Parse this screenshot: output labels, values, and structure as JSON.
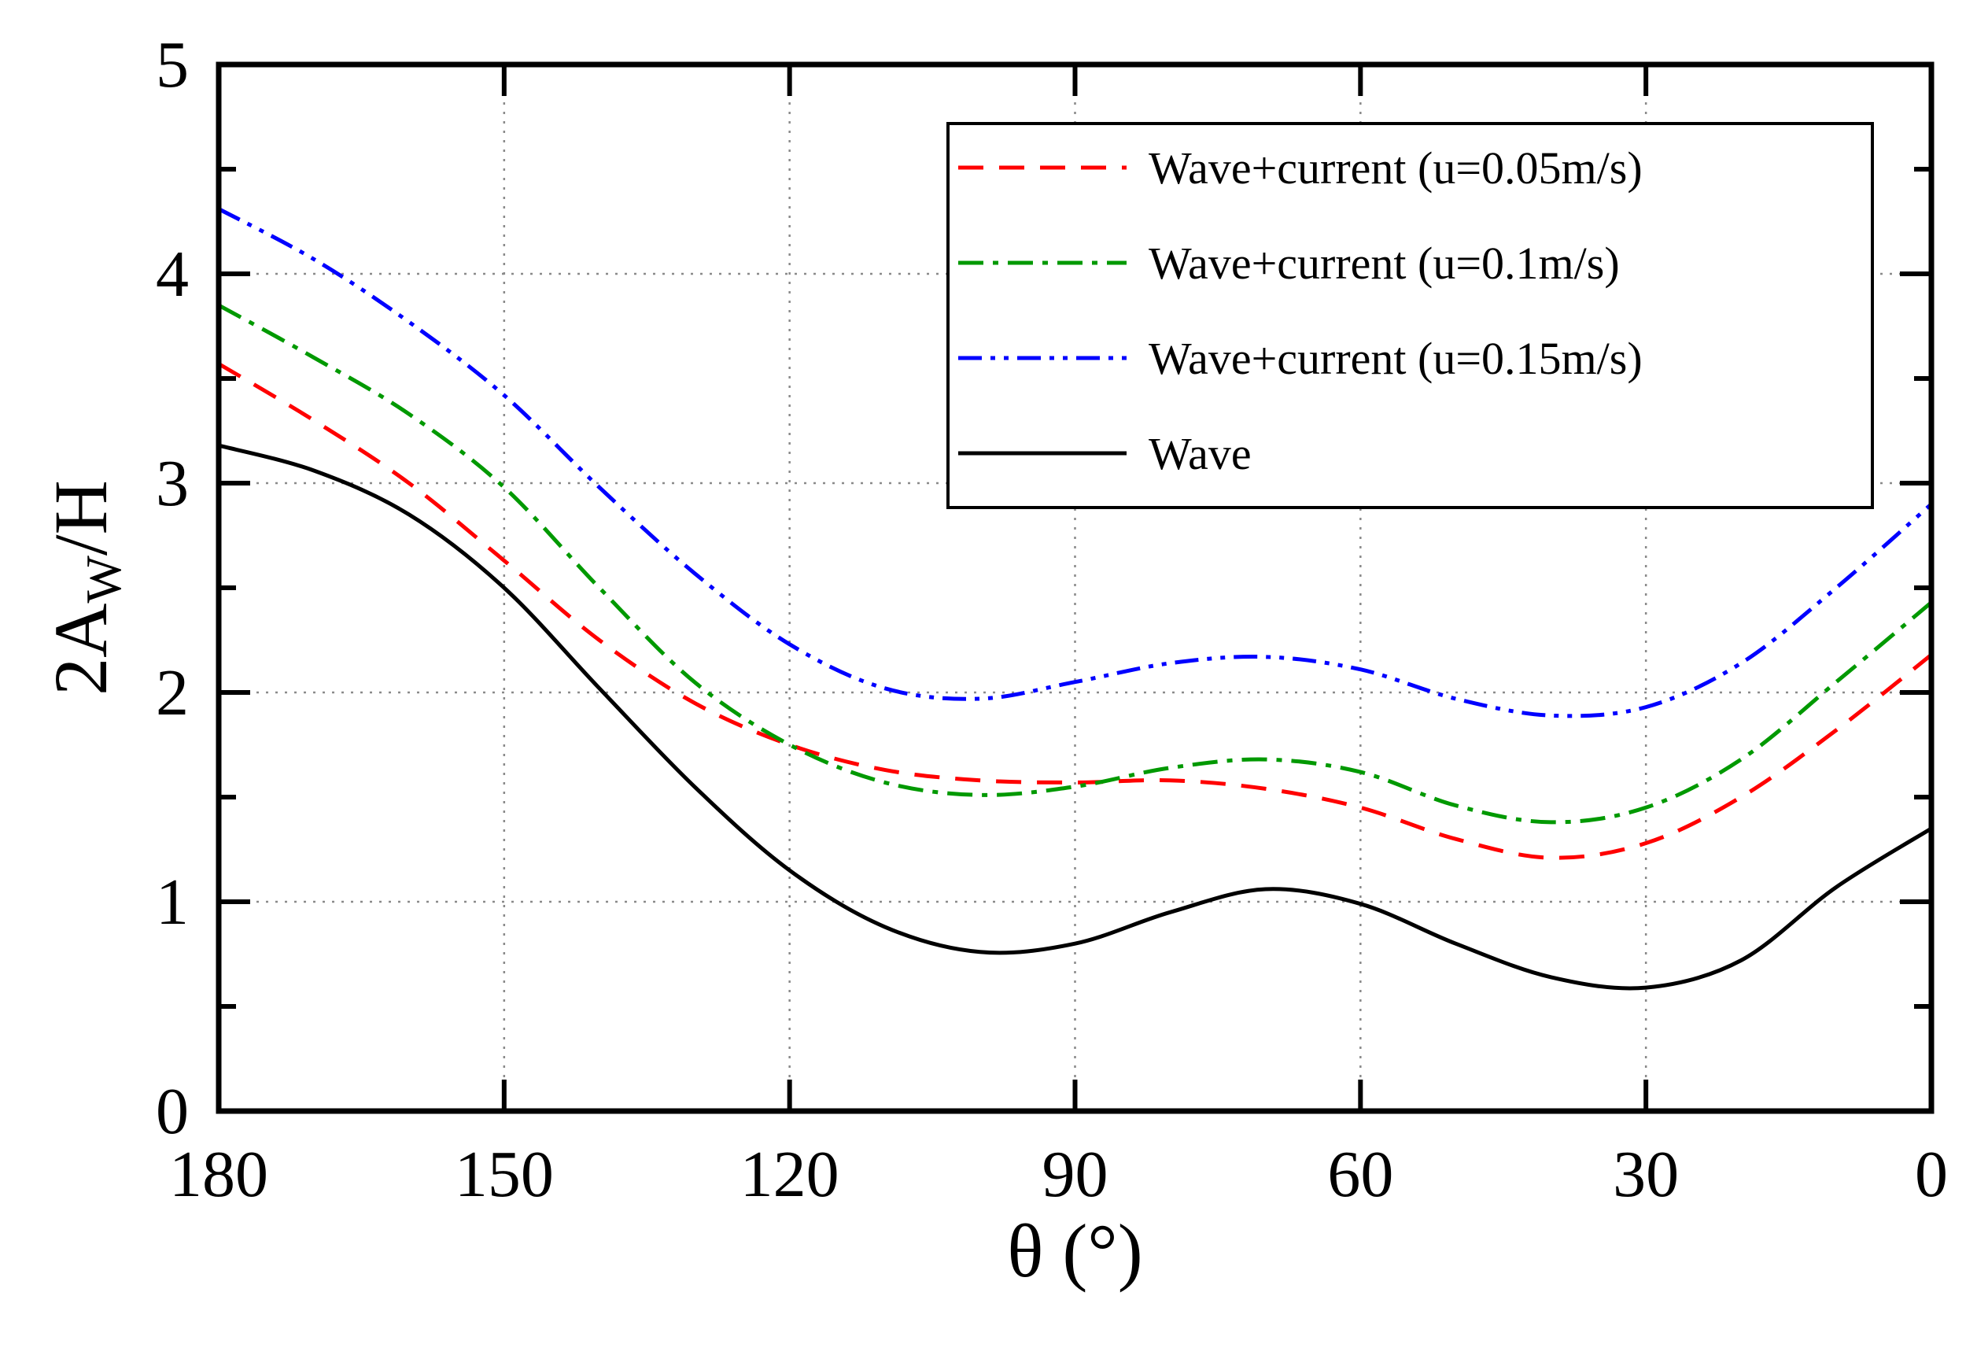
{
  "chart_data": {
    "type": "line",
    "xlabel": "θ (°)",
    "ylabel_main": "2A",
    "ylabel_sub": "W",
    "ylabel_tail": "/H",
    "xlim": [
      180,
      0
    ],
    "ylim": [
      0,
      5
    ],
    "x_reversed": true,
    "x_ticks": [
      180,
      150,
      120,
      90,
      60,
      30,
      0
    ],
    "y_ticks": [
      0,
      1,
      2,
      3,
      4,
      5
    ],
    "x_tick_labels": [
      "180",
      "150",
      "120",
      "90",
      "60",
      "30",
      "0"
    ],
    "y_tick_labels": [
      "0",
      "1",
      "2",
      "3",
      "4",
      "5"
    ],
    "grid": true,
    "legend_position": "top-right",
    "series": [
      {
        "name": "Wave+current (u=0.05m/s)",
        "color": "#ff0000",
        "dash": "dashed",
        "x": [
          180,
          170,
          160,
          150,
          140,
          130,
          120,
          110,
          100,
          90,
          80,
          70,
          60,
          50,
          40,
          30,
          20,
          10,
          0
        ],
        "y": [
          3.57,
          3.3,
          3.0,
          2.63,
          2.25,
          1.95,
          1.75,
          1.63,
          1.58,
          1.57,
          1.58,
          1.54,
          1.45,
          1.3,
          1.21,
          1.28,
          1.5,
          1.82,
          2.18
        ]
      },
      {
        "name": "Wave+current (u=0.1m/s)",
        "color": "#009900",
        "dash": "dashdot",
        "x": [
          180,
          170,
          160,
          150,
          140,
          130,
          120,
          110,
          100,
          90,
          80,
          70,
          60,
          50,
          40,
          30,
          20,
          10,
          0
        ],
        "y": [
          3.85,
          3.6,
          3.33,
          2.98,
          2.5,
          2.05,
          1.75,
          1.57,
          1.51,
          1.55,
          1.64,
          1.68,
          1.62,
          1.46,
          1.38,
          1.45,
          1.68,
          2.05,
          2.43
        ]
      },
      {
        "name": "Wave+current (u=0.15m/s)",
        "color": "#0000ff",
        "dash": "dashdotdot",
        "x": [
          180,
          170,
          160,
          150,
          140,
          130,
          120,
          110,
          100,
          90,
          80,
          70,
          60,
          50,
          40,
          30,
          20,
          10,
          0
        ],
        "y": [
          4.31,
          4.07,
          3.77,
          3.42,
          2.98,
          2.57,
          2.23,
          2.02,
          1.97,
          2.05,
          2.14,
          2.17,
          2.11,
          1.97,
          1.89,
          1.93,
          2.14,
          2.5,
          2.9
        ]
      },
      {
        "name": "Wave",
        "color": "#000000",
        "dash": "solid",
        "x": [
          180,
          170,
          160,
          150,
          140,
          130,
          120,
          110,
          100,
          90,
          80,
          70,
          60,
          50,
          40,
          30,
          20,
          10,
          0
        ],
        "y": [
          3.18,
          3.06,
          2.85,
          2.5,
          2.02,
          1.55,
          1.15,
          0.88,
          0.76,
          0.8,
          0.95,
          1.06,
          0.99,
          0.8,
          0.64,
          0.59,
          0.72,
          1.07,
          1.35
        ]
      }
    ]
  }
}
